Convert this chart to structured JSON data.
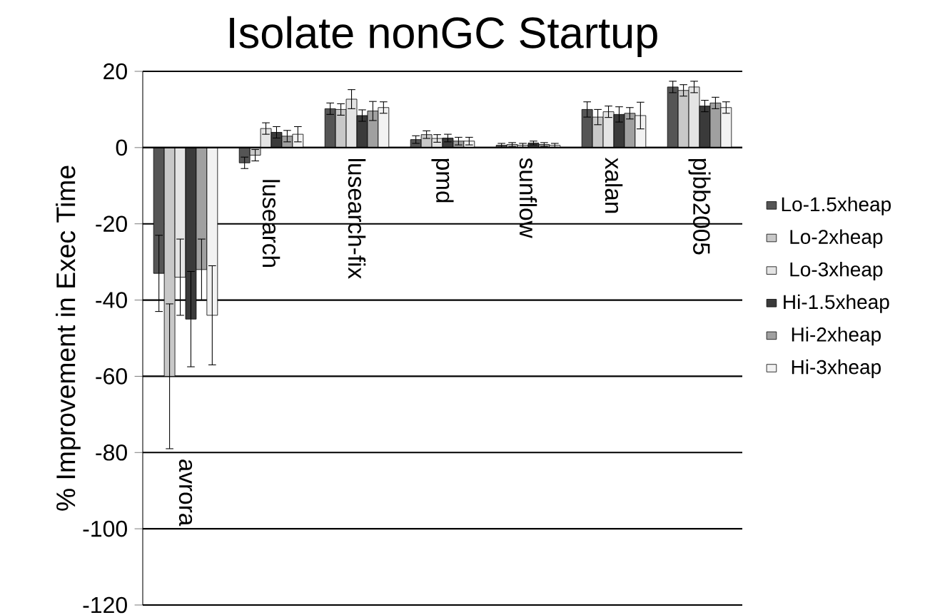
{
  "chart_data": {
    "type": "bar",
    "title": "Isolate nonGC Startup",
    "ylabel": "% Improvement in Exec Time",
    "categories": [
      "avrora",
      "lusearch",
      "lusearch-fix",
      "pmd",
      "sunflow",
      "xalan",
      "pjbb2005"
    ],
    "series": [
      {
        "name": "Lo-1.5xheap",
        "color": "#555555",
        "values": [
          -33,
          -4,
          10.2,
          2.1,
          0.6,
          10,
          15.9
        ],
        "errors": [
          10,
          1.5,
          1.5,
          1,
          0.5,
          2,
          1.5
        ]
      },
      {
        "name": "Lo-2xheap",
        "color": "#c8c8c8",
        "values": [
          -60,
          -2,
          10,
          3.4,
          0.8,
          8,
          15
        ],
        "errors": [
          19,
          1.5,
          1.5,
          1,
          0.5,
          2,
          1.5
        ]
      },
      {
        "name": "Lo-3xheap",
        "color": "#e4e4e4",
        "values": [
          -34,
          5,
          12.7,
          2.4,
          0.6,
          9.4,
          15.9
        ],
        "errors": [
          10,
          1.5,
          2.5,
          1,
          0.5,
          1.5,
          1.5
        ]
      },
      {
        "name": "Hi-1.5xheap",
        "color": "#3a3a3a",
        "values": [
          -45,
          4,
          8.4,
          2.5,
          1.2,
          8.7,
          10.9
        ],
        "errors": [
          12.5,
          1.5,
          1.5,
          1,
          0.5,
          2,
          1.5
        ]
      },
      {
        "name": "Hi-2xheap",
        "color": "#a0a0a0",
        "values": [
          -32,
          3,
          9.6,
          1.7,
          0.8,
          9,
          11.7
        ],
        "errors": [
          8,
          1.5,
          2.5,
          1,
          0.5,
          1.5,
          1.5
        ]
      },
      {
        "name": "Hi-3xheap",
        "color": "#f2f2f2",
        "values": [
          -44,
          3.5,
          10.5,
          1.7,
          0.6,
          8.4,
          10.5
        ],
        "errors": [
          13,
          2,
          1.5,
          1,
          0.5,
          3.5,
          1.5
        ]
      }
    ],
    "ylim": [
      -120,
      20
    ],
    "yticks": [
      -120,
      -100,
      -80,
      -60,
      -40,
      -20,
      0,
      20
    ],
    "grid": "y",
    "legend": "right"
  }
}
